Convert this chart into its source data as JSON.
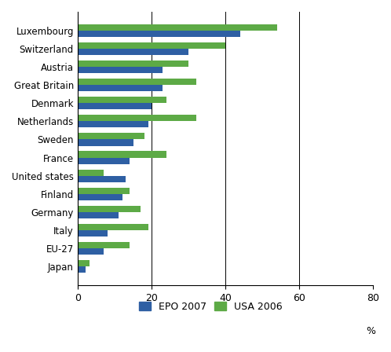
{
  "categories": [
    "Luxembourg",
    "Switzerland",
    "Austria",
    "Great Britain",
    "Denmark",
    "Netherlands",
    "Sweden",
    "France",
    "United states",
    "Finland",
    "Germany",
    "Italy",
    "EU-27",
    "Japan"
  ],
  "epo_2007": [
    44,
    30,
    23,
    23,
    20,
    19,
    15,
    14,
    13,
    12,
    11,
    8,
    7,
    2
  ],
  "usa_2006": [
    54,
    40,
    30,
    32,
    24,
    32,
    18,
    24,
    7,
    14,
    17,
    19,
    14,
    3
  ],
  "epo_color": "#2e5fa3",
  "usa_color": "#5daa46",
  "xlim": [
    0,
    80
  ],
  "xticks": [
    0,
    20,
    40,
    60,
    80
  ],
  "legend_epo": "EPO 2007",
  "legend_usa": "USA 2006",
  "bar_height": 0.35,
  "figsize": [
    4.98,
    4.48
  ],
  "dpi": 100,
  "vlines": [
    20,
    40,
    60
  ],
  "pct_label": "%"
}
